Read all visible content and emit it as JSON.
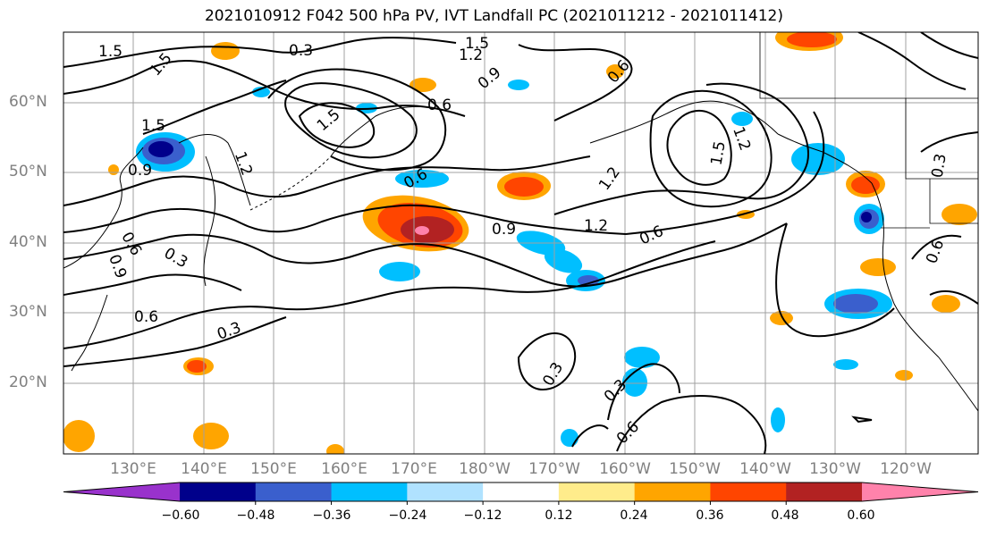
{
  "title": "2021010912 F042 500 hPa PV, IVT Landfall PC (2021011212 - 2021011412)",
  "lat_labels": [
    "60°N",
    "50°N",
    "40°N",
    "30°N",
    "20°N"
  ],
  "lon_labels": [
    "130°E",
    "140°E",
    "150°E",
    "160°E",
    "170°E",
    "180°W",
    "170°W",
    "160°W",
    "150°W",
    "140°W",
    "130°W",
    "120°W"
  ],
  "contour_labels": [
    "1.5",
    "1.5",
    "0.3",
    "1.5",
    "1.2",
    "0.9",
    "0.6",
    "1.5",
    "1.2",
    "0.6",
    "0.9",
    "0.6",
    "0.3",
    "0.9",
    "1.2",
    "0.6",
    "1.2",
    "1.5",
    "0.9",
    "0.6",
    "0.3",
    "0.3",
    "0.6",
    "0.3",
    "0.6",
    "0.3",
    "0.6",
    "1.5",
    "1.2"
  ],
  "colorbar": {
    "ticks": [
      "−0.60",
      "−0.48",
      "−0.36",
      "−0.24",
      "−0.12",
      "0.12",
      "0.24",
      "0.36",
      "0.48",
      "0.60"
    ],
    "colors": [
      "#9932cc",
      "#00008b",
      "#3a5fcd",
      "#00bfff",
      "#b0e2ff",
      "#ffffff",
      "#ffec8b",
      "#ffa500",
      "#ff4500",
      "#b22222",
      "#ff82ab"
    ]
  }
}
